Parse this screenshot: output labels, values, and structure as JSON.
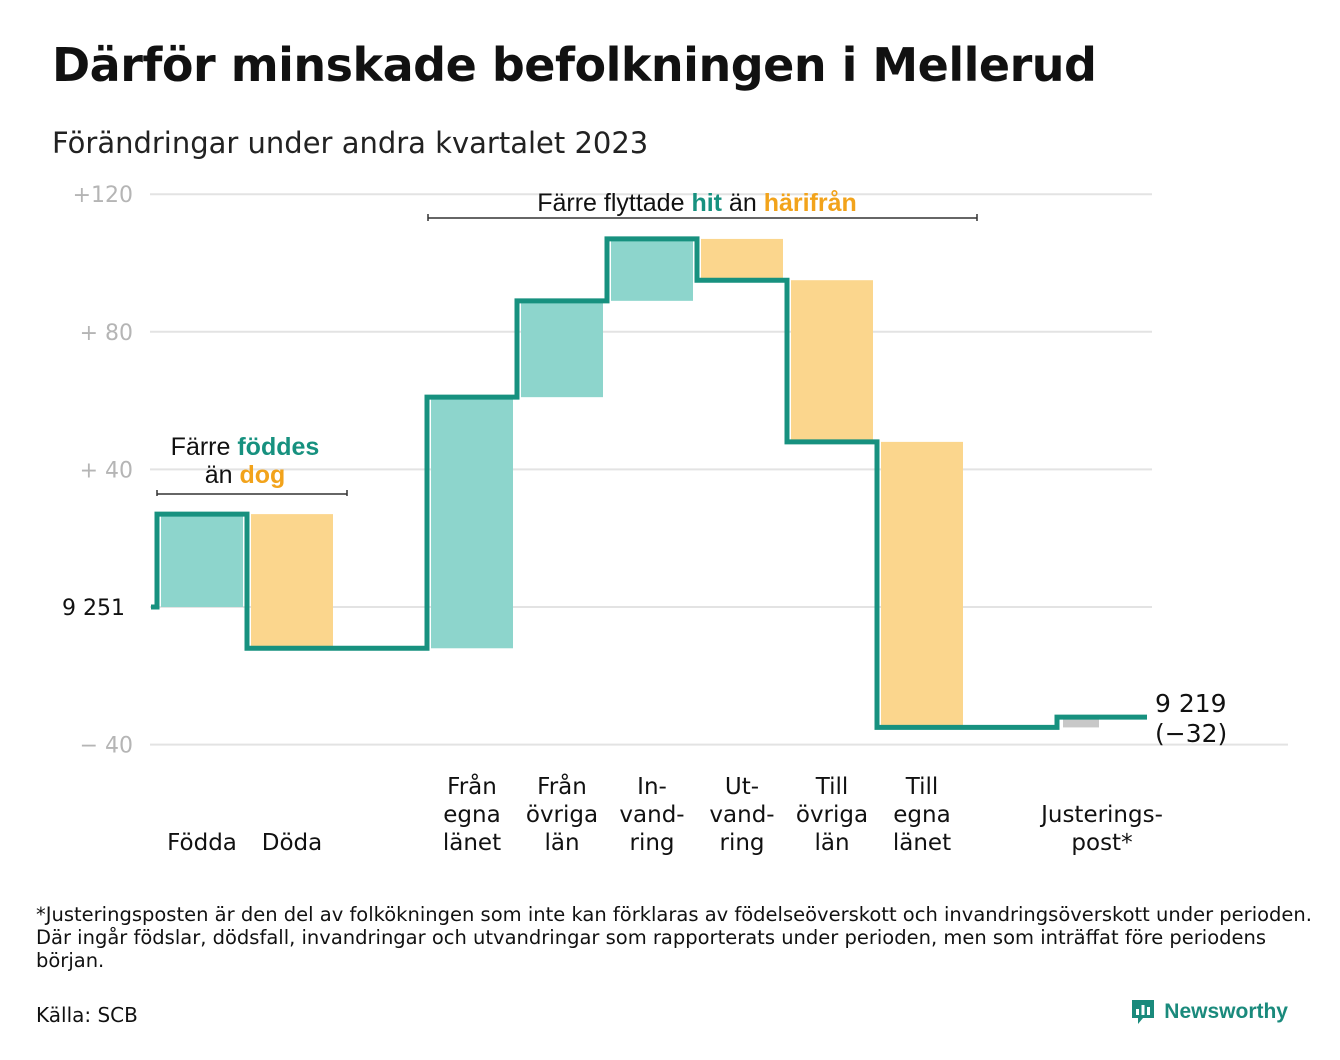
{
  "title": "Därför minskade befolkningen i Mellerud",
  "subtitle": "Förändringar under andra kvartalet 2023",
  "footnote": "*Justeringsposten är den del av folkökningen som inte kan förklaras av födelseöverskott och invandringsöverskott under perioden. Där ingår födslar, dödsfall, invandringar och utvandringar som rapporterats under perioden, men som inträffat före periodens början.",
  "source": "Källa: SCB",
  "brand": "Newsworthy",
  "colors": {
    "increase_fill": "#8dd5cc",
    "decrease_fill": "#fbd68d",
    "adjustment_fill": "#c8c8c8",
    "line": "#17917f",
    "teal_text": "#17917f",
    "orange_text": "#f2a31b",
    "grid": "#e3e3e3",
    "tick_text": "#b5b5b5"
  },
  "chart_data": {
    "type": "waterfall",
    "start_value": 9251,
    "start_label": "9  251",
    "end_label": "9 219",
    "end_change_label": "(−32)",
    "y_range": [
      -40,
      120
    ],
    "y_ticks": [
      {
        "value": 120,
        "label": "+120"
      },
      {
        "value": 80,
        "label": "+  80"
      },
      {
        "value": 40,
        "label": "+  40"
      },
      {
        "value": -40,
        "label": "−  40"
      }
    ],
    "steps": [
      {
        "label": [
          "Födda"
        ],
        "change": 27,
        "kind": "increase"
      },
      {
        "label": [
          "Döda"
        ],
        "change": -39,
        "kind": "decrease"
      },
      {
        "label": [],
        "change": 0,
        "kind": "gap"
      },
      {
        "label": [
          "Från",
          "egna",
          "länet"
        ],
        "change": 73,
        "kind": "increase"
      },
      {
        "label": [
          "Från",
          "övriga",
          "län"
        ],
        "change": 28,
        "kind": "increase"
      },
      {
        "label": [
          "In-",
          "vand-",
          "ring"
        ],
        "change": 18,
        "kind": "increase"
      },
      {
        "label": [
          "Ut-",
          "vand-",
          "ring"
        ],
        "change": -12,
        "kind": "decrease"
      },
      {
        "label": [
          "Till",
          "övriga",
          "län"
        ],
        "change": -47,
        "kind": "decrease"
      },
      {
        "label": [
          "Till",
          "egna",
          "länet"
        ],
        "change": -83,
        "kind": "decrease"
      },
      {
        "label": [],
        "change": 0,
        "kind": "gap"
      },
      {
        "label": [
          "Justerings-",
          "post*"
        ],
        "change": 3,
        "kind": "adjustment"
      }
    ],
    "annotations": [
      {
        "group": "births_deaths",
        "parts": [
          [
            "Färre ",
            "plain"
          ],
          [
            "föddes",
            "teal"
          ]
        ],
        "parts2": [
          [
            "än ",
            "plain"
          ],
          [
            "dog",
            "orange"
          ]
        ]
      },
      {
        "group": "migration",
        "parts": [
          [
            "Färre flyttade ",
            "plain"
          ],
          [
            "hit",
            "teal"
          ],
          [
            " än ",
            "plain"
          ],
          [
            "härifrån",
            "orange"
          ]
        ]
      }
    ]
  }
}
